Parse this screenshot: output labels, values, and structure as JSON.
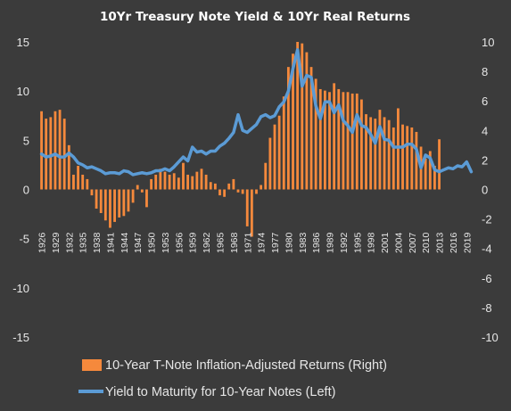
{
  "chart_data": {
    "type": "bar-line-combo",
    "title": "10Yr Treasury Note Yield & 10Yr Real Returns",
    "years": [
      1926,
      1927,
      1928,
      1929,
      1930,
      1931,
      1932,
      1933,
      1934,
      1935,
      1936,
      1937,
      1938,
      1939,
      1940,
      1941,
      1942,
      1943,
      1944,
      1945,
      1946,
      1947,
      1948,
      1949,
      1950,
      1951,
      1952,
      1953,
      1954,
      1955,
      1956,
      1957,
      1958,
      1959,
      1960,
      1961,
      1962,
      1963,
      1964,
      1965,
      1966,
      1967,
      1968,
      1969,
      1970,
      1971,
      1972,
      1973,
      1974,
      1975,
      1976,
      1977,
      1978,
      1979,
      1980,
      1981,
      1982,
      1983,
      1984,
      1985,
      1986,
      1987,
      1988,
      1989,
      1990,
      1991,
      1992,
      1993,
      1994,
      1995,
      1996,
      1997,
      1998,
      1999,
      2000,
      2001,
      2002,
      2003,
      2004,
      2005,
      2006,
      2007,
      2008,
      2009,
      2010,
      2011,
      2012,
      2013,
      2014,
      2015,
      2016,
      2017,
      2018,
      2019,
      2020
    ],
    "x_tick_labels": [
      "1926",
      "1929",
      "1932",
      "1935",
      "1938",
      "1941",
      "1944",
      "1947",
      "1950",
      "1953",
      "1956",
      "1959",
      "1962",
      "1965",
      "1968",
      "1971",
      "1974",
      "1977",
      "1980",
      "1983",
      "1986",
      "1989",
      "1992",
      "1995",
      "1998",
      "2001",
      "2004",
      "2007",
      "2010",
      "2013",
      "2016",
      "2019"
    ],
    "left_axis": {
      "min": -15,
      "max": 15,
      "ticks": [
        "15",
        "10",
        "5",
        "0",
        "-5",
        "-10",
        "-15"
      ]
    },
    "right_axis": {
      "min": -10,
      "max": 10,
      "ticks": [
        "10",
        "8",
        "6",
        "4",
        "2",
        "0",
        "-2",
        "-4",
        "-6",
        "-8",
        "-10"
      ]
    },
    "series": [
      {
        "name": "10-Year T-Note Inflation-Adjusted Returns (Right)",
        "kind": "bar",
        "axis": "right",
        "color": "#f5893c",
        "values": [
          5.3,
          4.8,
          4.9,
          5.3,
          5.4,
          4.8,
          3.0,
          1.0,
          1.6,
          1.0,
          0.7,
          -0.4,
          -1.3,
          -1.6,
          -2.1,
          -2.6,
          -2.2,
          -1.9,
          -1.8,
          -1.5,
          -0.9,
          0.3,
          -0.2,
          -1.2,
          0.7,
          1.0,
          1.4,
          1.2,
          1.0,
          1.1,
          0.8,
          1.8,
          1.0,
          0.9,
          1.2,
          1.4,
          1.0,
          0.5,
          0.4,
          -0.4,
          -0.5,
          0.4,
          0.7,
          -0.2,
          -0.3,
          -2.5,
          -3.2,
          -0.3,
          0.3,
          1.8,
          3.5,
          4.4,
          5.0,
          6.3,
          8.3,
          9.2,
          10.0,
          9.9,
          9.3,
          8.3,
          7.5,
          6.8,
          6.7,
          6.6,
          7.2,
          6.8,
          6.6,
          6.6,
          6.5,
          6.5,
          6.1,
          5.1,
          4.9,
          4.8,
          5.4,
          4.9,
          4.7,
          4.2,
          5.5,
          4.4,
          4.3,
          4.2,
          3.9,
          2.9,
          2.1,
          2.6,
          1.6,
          3.4,
          0,
          0,
          0,
          0,
          0,
          0,
          0
        ]
      },
      {
        "name": "Yield to Maturity for 10-Year Notes (Left)",
        "kind": "line",
        "axis": "left",
        "color": "#5b9bd5",
        "values": [
          3.6,
          3.3,
          3.4,
          3.6,
          3.3,
          3.3,
          3.7,
          3.3,
          2.7,
          2.5,
          2.2,
          2.3,
          2.1,
          1.9,
          1.6,
          1.7,
          1.7,
          1.6,
          1.9,
          1.8,
          1.5,
          1.6,
          1.7,
          1.6,
          1.7,
          1.9,
          1.9,
          2.1,
          1.9,
          2.3,
          2.8,
          3.3,
          2.9,
          4.3,
          3.8,
          3.9,
          3.6,
          3.9,
          3.9,
          4.4,
          4.7,
          5.2,
          5.8,
          7.6,
          6.0,
          5.8,
          6.2,
          6.6,
          7.4,
          7.6,
          7.3,
          7.5,
          8.4,
          8.9,
          10.0,
          12.3,
          14.2,
          10.5,
          11.6,
          11.4,
          8.5,
          7.2,
          8.9,
          8.9,
          7.8,
          8.6,
          7.0,
          6.5,
          5.8,
          7.6,
          6.5,
          6.3,
          5.6,
          4.7,
          6.4,
          5.1,
          5.0,
          4.3,
          4.3,
          4.3,
          4.6,
          4.6,
          4.1,
          2.2,
          3.5,
          3.2,
          2.0,
          1.8,
          2.0,
          2.2,
          2.1,
          2.4,
          2.3,
          2.8,
          1.8
        ]
      }
    ],
    "legend_position": "bottom",
    "grid": false
  },
  "colors": {
    "background": "#3b3b3b",
    "text": "#e6e6e6"
  }
}
